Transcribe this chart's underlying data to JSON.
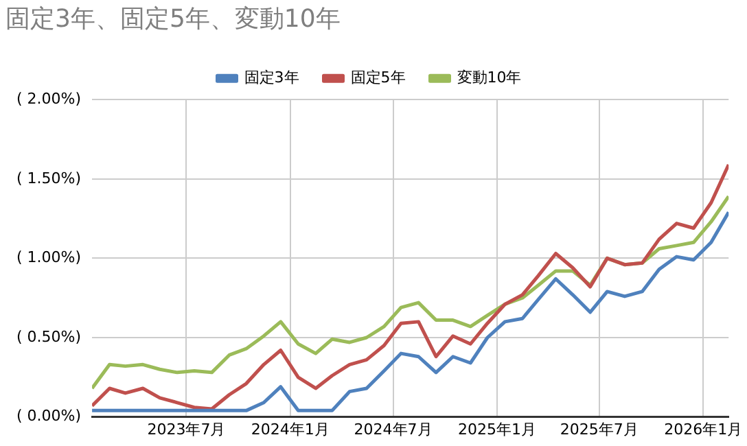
{
  "chart_data": {
    "type": "line",
    "title": "固定3年、固定5年、変動10年",
    "x": [
      "2023-01-15",
      "2023-02-15",
      "2023-03-15",
      "2023-04-15",
      "2023-05-15",
      "2023-06-15",
      "2023-07-15",
      "2023-08-15",
      "2023-09-15",
      "2023-10-15",
      "2023-11-15",
      "2023-12-15",
      "2024-01-15",
      "2024-02-15",
      "2024-03-15",
      "2024-04-15",
      "2024-05-15",
      "2024-06-15",
      "2024-07-15",
      "2024-08-15",
      "2024-09-15",
      "2024-10-15",
      "2024-11-15",
      "2024-12-15",
      "2025-01-15",
      "2025-02-15",
      "2025-03-15",
      "2025-04-15",
      "2025-05-15",
      "2025-06-15",
      "2025-07-15",
      "2025-08-15",
      "2025-09-15",
      "2025-10-15",
      "2025-11-15",
      "2025-12-15",
      "2026-01-15",
      "2026-02-15"
    ],
    "series": [
      {
        "name": "固定3年",
        "color": "#4f81bd",
        "values": [
          0.04,
          0.04,
          0.04,
          0.04,
          0.04,
          0.04,
          0.04,
          0.04,
          0.04,
          0.04,
          0.09,
          0.19,
          0.04,
          0.04,
          0.04,
          0.16,
          0.18,
          0.29,
          0.4,
          0.38,
          0.28,
          0.38,
          0.34,
          0.5,
          0.6,
          0.62,
          0.74,
          0.87,
          0.77,
          0.66,
          0.79,
          0.76,
          0.79,
          0.93,
          1.01,
          0.99,
          1.1,
          1.29
        ]
      },
      {
        "name": "固定5年",
        "color": "#c0504d",
        "values": [
          0.07,
          0.18,
          0.15,
          0.18,
          0.12,
          0.09,
          0.06,
          0.05,
          0.14,
          0.21,
          0.33,
          0.42,
          0.25,
          0.18,
          0.26,
          0.33,
          0.36,
          0.45,
          0.59,
          0.6,
          0.38,
          0.51,
          0.46,
          0.59,
          0.71,
          0.77,
          0.89,
          1.03,
          0.94,
          0.82,
          1.0,
          0.96,
          0.97,
          1.12,
          1.22,
          1.19,
          1.35,
          1.59
        ]
      },
      {
        "name": "変動10年",
        "color": "#9bbb59",
        "values": [
          0.18,
          0.33,
          0.32,
          0.33,
          0.3,
          0.28,
          0.29,
          0.28,
          0.39,
          0.43,
          0.51,
          0.6,
          0.46,
          0.4,
          0.49,
          0.47,
          0.5,
          0.57,
          0.69,
          0.72,
          0.61,
          0.61,
          0.57,
          0.64,
          0.71,
          0.75,
          0.83,
          0.92,
          0.92,
          0.83,
          1.0,
          0.96,
          0.97,
          1.06,
          1.08,
          1.1,
          1.23,
          1.39
        ]
      }
    ],
    "xlim": [
      "2023-01-15",
      "2026-02-15"
    ],
    "xticks": [
      {
        "value": "2023-07-01",
        "label": "2023年7月"
      },
      {
        "value": "2024-01-01",
        "label": "2024年1月"
      },
      {
        "value": "2024-07-01",
        "label": "2024年7月"
      },
      {
        "value": "2025-01-01",
        "label": "2025年1月"
      },
      {
        "value": "2025-07-01",
        "label": "2025年7月"
      },
      {
        "value": "2026-01-01",
        "label": "2026年1月"
      }
    ],
    "ylim": [
      0,
      2
    ],
    "yticks": [
      {
        "value": 0,
        "label": "( 0.00%)"
      },
      {
        "value": 0.5,
        "label": "( 0.50%)"
      },
      {
        "value": 1,
        "label": "( 1.00%)"
      },
      {
        "value": 1.5,
        "label": "( 1.50%)"
      },
      {
        "value": 2,
        "label": "( 2.00%)"
      }
    ],
    "grid": true,
    "legend": "top",
    "marker": "none",
    "line_style": "solid"
  }
}
